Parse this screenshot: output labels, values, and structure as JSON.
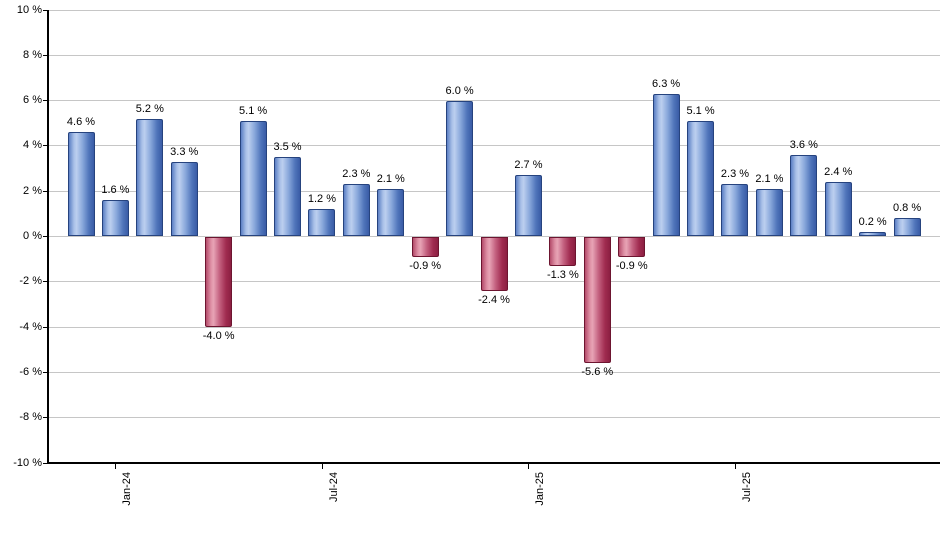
{
  "chart": {
    "background": "#ffffff",
    "grid_color": "#c6c6c6",
    "axis_color": "#000000",
    "text_color": "#000000",
    "bar_positive": {
      "border": "#26437e",
      "edge": "#5c80c4",
      "highlight": "#bccfef",
      "shadow": "#3a5ca6"
    },
    "bar_negative": {
      "border": "#6d1530",
      "edge": "#b44b6a",
      "highlight": "#e7a3b5",
      "shadow": "#8c1f42"
    }
  },
  "chart_data": {
    "type": "bar",
    "title": "",
    "xlabel": "",
    "ylabel": "",
    "ylim": [
      -10,
      10
    ],
    "grid": true,
    "legend": false,
    "y_ticks": [
      {
        "value": 10,
        "label": "10 %"
      },
      {
        "value": 8,
        "label": "8 %"
      },
      {
        "value": 6,
        "label": "6 %"
      },
      {
        "value": 4,
        "label": "4 %"
      },
      {
        "value": 2,
        "label": "2 %"
      },
      {
        "value": 0,
        "label": "0 %"
      },
      {
        "value": -2,
        "label": "-2 %"
      },
      {
        "value": -4,
        "label": "-4 %"
      },
      {
        "value": -6,
        "label": "-6 %"
      },
      {
        "value": -8,
        "label": "-8 %"
      },
      {
        "value": -10,
        "label": "-10 %"
      }
    ],
    "x_ticks": [
      {
        "bar_index": 1,
        "label": "Jan-24"
      },
      {
        "bar_index": 7,
        "label": "Jul-24"
      },
      {
        "bar_index": 13,
        "label": "Jan-25"
      },
      {
        "bar_index": 19,
        "label": "Jul-25"
      }
    ],
    "values": [
      4.6,
      1.6,
      5.2,
      3.3,
      -4.0,
      5.1,
      3.5,
      1.2,
      2.3,
      2.1,
      -0.9,
      6.0,
      -2.4,
      2.7,
      -1.3,
      -5.6,
      -0.9,
      6.3,
      5.1,
      2.3,
      2.1,
      3.6,
      2.4,
      0.2,
      0.8
    ],
    "value_labels": [
      "4.6 %",
      "1.6 %",
      "5.2 %",
      "3.3 %",
      "-4.0 %",
      "5.1 %",
      "3.5 %",
      "1.2 %",
      "2.3 %",
      "2.1 %",
      "-0.9 %",
      "6.0 %",
      "-2.4 %",
      "2.7 %",
      "-1.3 %",
      "-5.6 %",
      "-0.9 %",
      "6.3 %",
      "5.1 %",
      "2.3 %",
      "2.1 %",
      "3.6 %",
      "2.4 %",
      "0.2 %",
      "0.8 %"
    ]
  }
}
